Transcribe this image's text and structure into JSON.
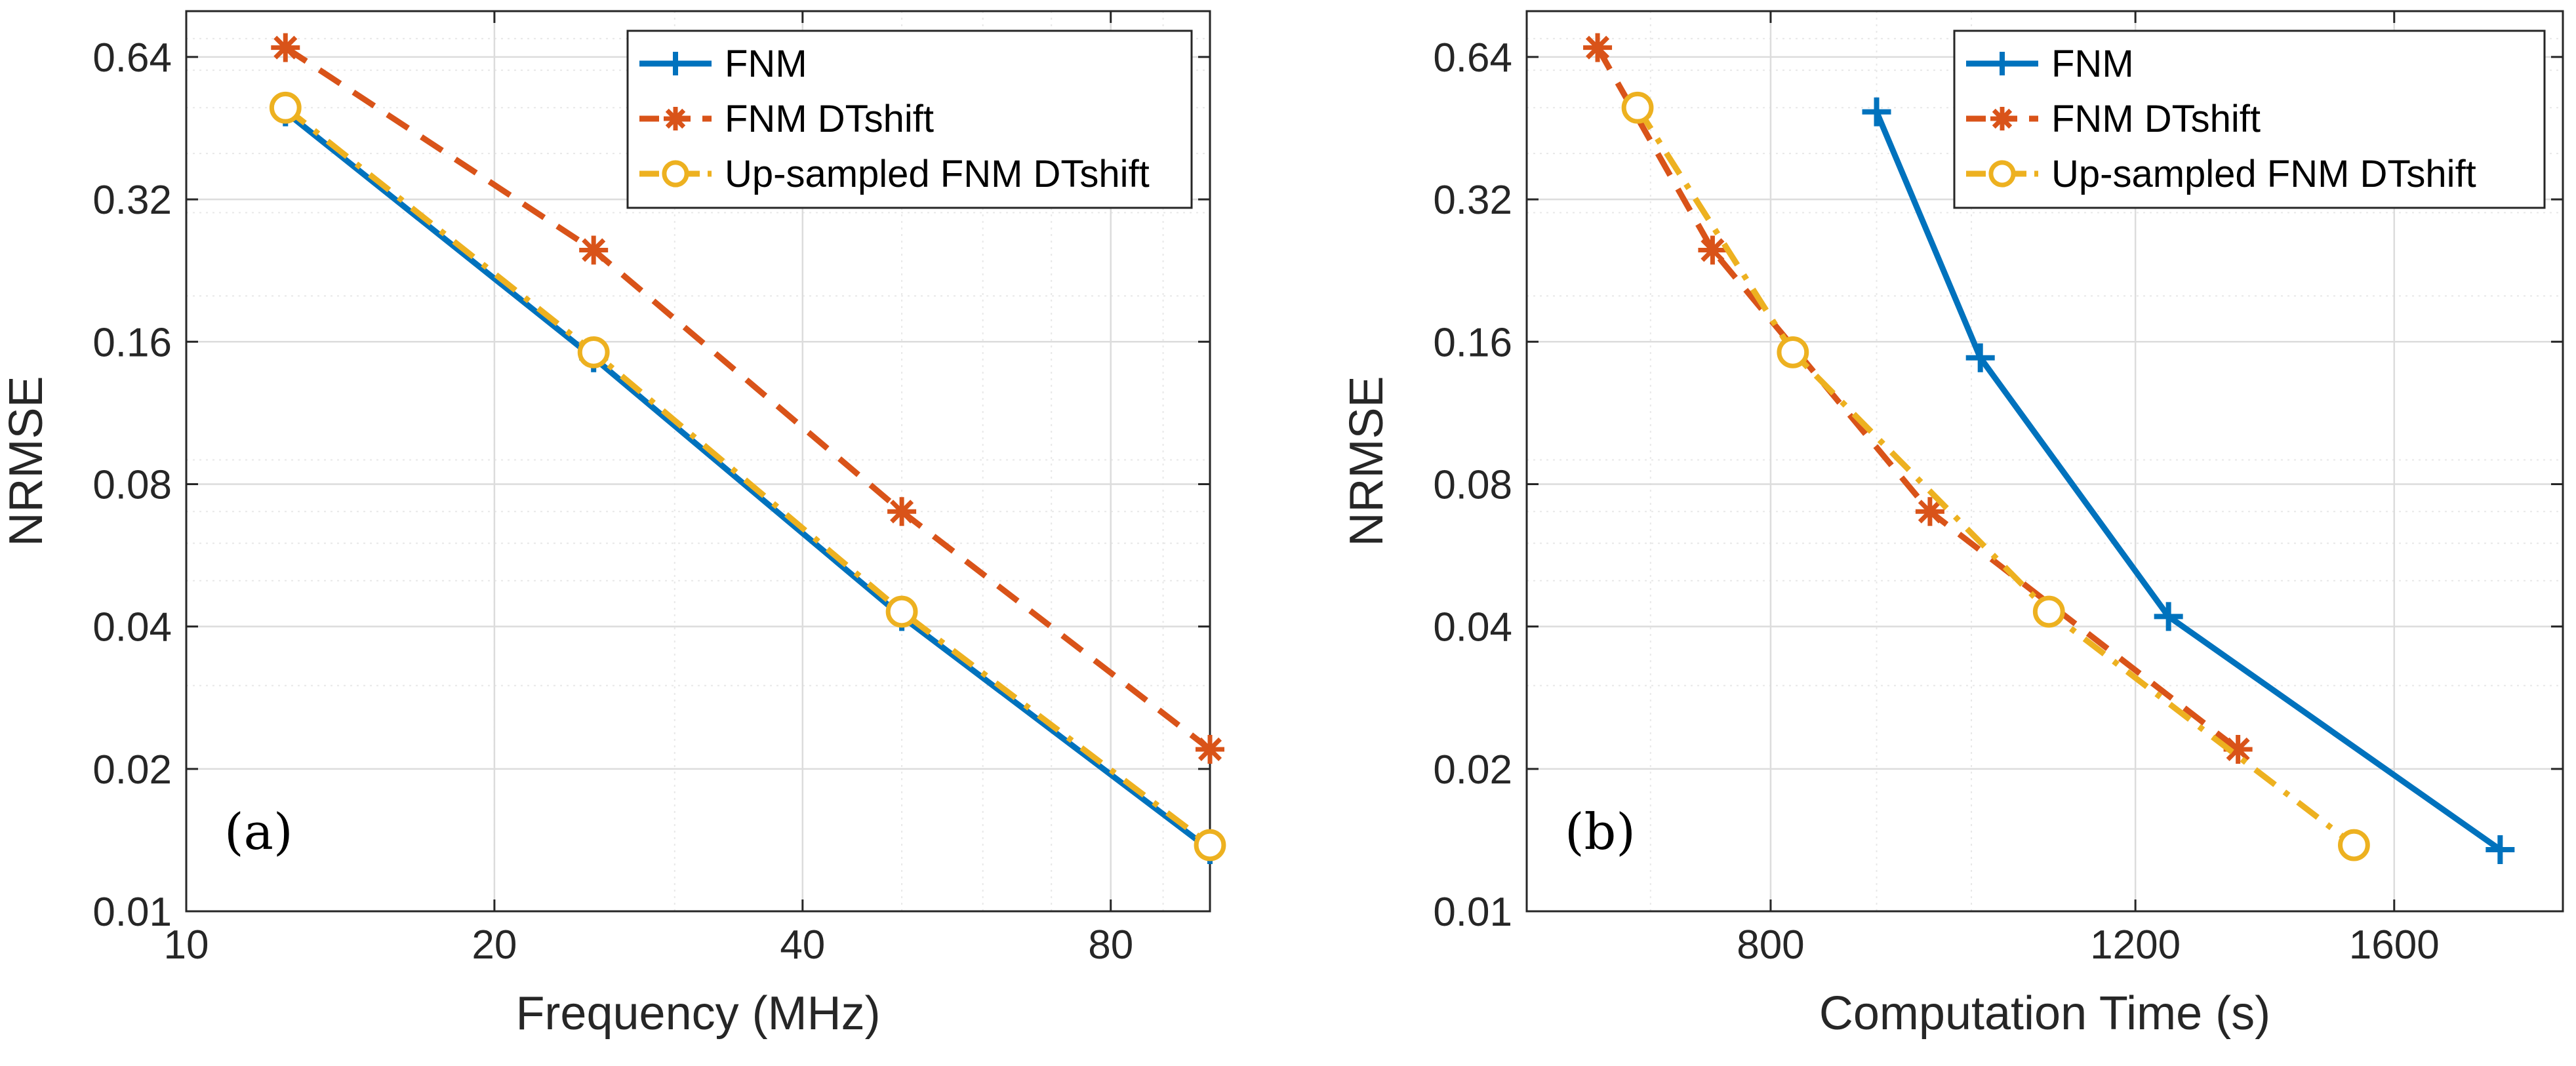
{
  "chart_data": [
    {
      "type": "line",
      "panel_label": "(a)",
      "xscale": "log",
      "yscale": "log",
      "xlabel": "Frequency (MHz)",
      "ylabel": "NRMSE",
      "xlim": [
        10,
        100
      ],
      "ylim": [
        0.01,
        0.8
      ],
      "xticks": [
        10,
        20,
        40,
        80
      ],
      "xtick_labels": [
        "10",
        "20",
        "40",
        "80"
      ],
      "yticks": [
        0.01,
        0.02,
        0.04,
        0.08,
        0.16,
        0.32,
        0.64
      ],
      "ytick_labels": [
        "0.01",
        "0.02",
        "0.04",
        "0.08",
        "0.16",
        "0.32",
        "0.64"
      ],
      "grid": true,
      "legend_position": "top-right",
      "series": [
        {
          "name": "FNM",
          "color": "#0072BD",
          "linestyle": "solid",
          "marker": "plus",
          "x": [
            12.5,
            25,
            50,
            100
          ],
          "y": [
            0.49,
            0.148,
            0.042,
            0.0135
          ]
        },
        {
          "name": "FNM DTshift",
          "color": "#D95319",
          "linestyle": "dashed",
          "marker": "asterisk",
          "x": [
            12.5,
            25,
            50,
            100
          ],
          "y": [
            0.67,
            0.25,
            0.07,
            0.022
          ]
        },
        {
          "name": "Up-sampled FNM DTshift",
          "color": "#EDB120",
          "linestyle": "dashdot",
          "marker": "circle",
          "x": [
            12.5,
            25,
            50,
            100
          ],
          "y": [
            0.5,
            0.152,
            0.043,
            0.0138
          ]
        }
      ]
    },
    {
      "type": "line",
      "panel_label": "(b)",
      "xscale": "log",
      "yscale": "log",
      "xlabel": "Computation Time (s)",
      "ylabel": "NRMSE",
      "xlim": [
        610,
        1930
      ],
      "ylim": [
        0.01,
        0.8
      ],
      "xticks": [
        800,
        1200,
        1600
      ],
      "xtick_labels": [
        "800",
        "1200",
        "1600"
      ],
      "yticks": [
        0.01,
        0.02,
        0.04,
        0.08,
        0.16,
        0.32,
        0.64
      ],
      "ytick_labels": [
        "0.01",
        "0.02",
        "0.04",
        "0.08",
        "0.16",
        "0.32",
        "0.64"
      ],
      "grid": true,
      "legend_position": "top-right",
      "series": [
        {
          "name": "FNM",
          "color": "#0072BD",
          "linestyle": "solid",
          "marker": "plus",
          "x": [
            900,
            1010,
            1245,
            1800
          ],
          "y": [
            0.49,
            0.148,
            0.042,
            0.0135
          ]
        },
        {
          "name": "FNM DTshift",
          "color": "#D95319",
          "linestyle": "dashed",
          "marker": "asterisk",
          "x": [
            660,
            750,
            955,
            1345
          ],
          "y": [
            0.67,
            0.25,
            0.07,
            0.022
          ]
        },
        {
          "name": "Up-sampled FNM DTshift",
          "color": "#EDB120",
          "linestyle": "dashdot",
          "marker": "circle",
          "x": [
            690,
            820,
            1090,
            1530
          ],
          "y": [
            0.5,
            0.152,
            0.043,
            0.0138
          ]
        }
      ]
    }
  ]
}
